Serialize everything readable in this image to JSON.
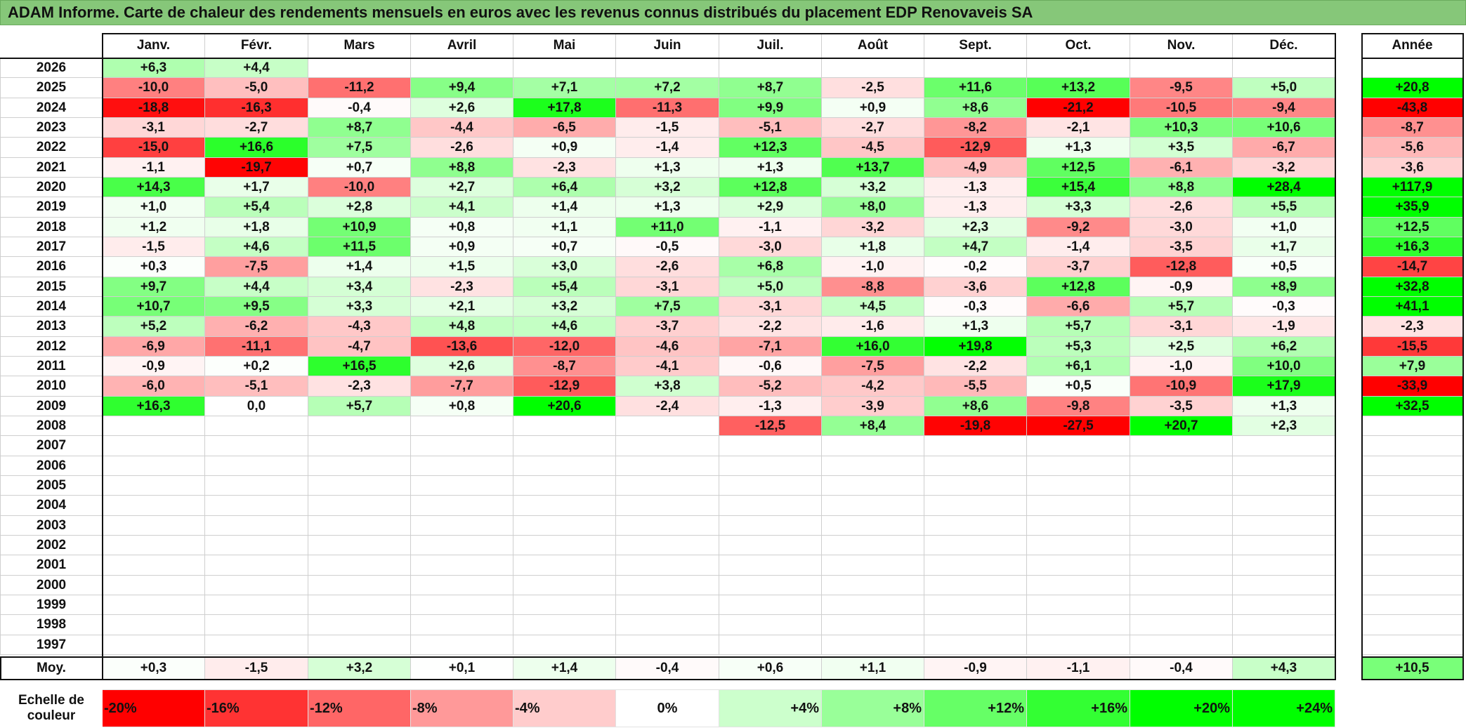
{
  "colors": {
    "title_bar": "#86c779"
  },
  "chart_data": {
    "type": "heatmap",
    "title": "ADAM Informe. Carte de chaleur des rendements mensuels en euros avec les revenus connus distribués du placement EDP Renovaveis SA",
    "x_categories": [
      "Janv.",
      "Févr.",
      "Mars",
      "Avril",
      "Mai",
      "Juin",
      "Juil.",
      "Août",
      "Sept.",
      "Oct.",
      "Nov.",
      "Déc."
    ],
    "y_categories": [
      "2026",
      "2025",
      "2024",
      "2023",
      "2022",
      "2021",
      "2020",
      "2019",
      "2018",
      "2017",
      "2016",
      "2015",
      "2014",
      "2013",
      "2012",
      "2011",
      "2010",
      "2009",
      "2008",
      "2007",
      "2006",
      "2005",
      "2004",
      "2003",
      "2002",
      "2001",
      "2000",
      "1999",
      "1998",
      "1997"
    ],
    "values": [
      [
        6.3,
        4.4,
        null,
        null,
        null,
        null,
        null,
        null,
        null,
        null,
        null,
        null
      ],
      [
        -10.0,
        -5.0,
        -11.2,
        9.4,
        7.1,
        7.2,
        8.7,
        -2.5,
        11.6,
        13.2,
        -9.5,
        5.0
      ],
      [
        -18.8,
        -16.3,
        -0.4,
        2.6,
        17.8,
        -11.3,
        9.9,
        0.9,
        8.6,
        -21.2,
        -10.5,
        -9.4
      ],
      [
        -3.1,
        -2.7,
        8.7,
        -4.4,
        -6.5,
        -1.5,
        -5.1,
        -2.7,
        -8.2,
        -2.1,
        10.3,
        10.6
      ],
      [
        -15.0,
        16.6,
        7.5,
        -2.6,
        0.9,
        -1.4,
        12.3,
        -4.5,
        -12.9,
        1.3,
        3.5,
        -6.7
      ],
      [
        -1.1,
        -19.7,
        0.7,
        8.8,
        -2.3,
        1.3,
        1.3,
        13.7,
        -4.9,
        12.5,
        -6.1,
        -3.2
      ],
      [
        14.3,
        1.7,
        -10.0,
        2.7,
        6.4,
        3.2,
        12.8,
        3.2,
        -1.3,
        15.4,
        8.8,
        28.4
      ],
      [
        1.0,
        5.4,
        2.8,
        4.1,
        1.4,
        1.3,
        2.9,
        8.0,
        -1.3,
        3.3,
        -2.6,
        5.5
      ],
      [
        1.2,
        1.8,
        10.9,
        0.8,
        1.1,
        11.0,
        -1.1,
        -3.2,
        2.3,
        -9.2,
        -3.0,
        1.0
      ],
      [
        -1.5,
        4.6,
        11.5,
        0.9,
        0.7,
        -0.5,
        -3.0,
        1.8,
        4.7,
        -1.4,
        -3.5,
        1.7
      ],
      [
        0.3,
        -7.5,
        1.4,
        1.5,
        3.0,
        -2.6,
        6.8,
        -1.0,
        -0.2,
        -3.7,
        -12.8,
        0.5
      ],
      [
        9.7,
        4.4,
        3.4,
        -2.3,
        5.4,
        -3.1,
        5.0,
        -8.8,
        -3.6,
        12.8,
        -0.9,
        8.9
      ],
      [
        10.7,
        9.5,
        3.3,
        2.1,
        3.2,
        7.5,
        -3.1,
        4.5,
        -0.3,
        -6.6,
        5.7,
        -0.3
      ],
      [
        5.2,
        -6.2,
        -4.3,
        4.8,
        4.6,
        -3.7,
        -2.2,
        -1.6,
        1.3,
        5.7,
        -3.1,
        -1.9
      ],
      [
        -6.9,
        -11.1,
        -4.7,
        -13.6,
        -12.0,
        -4.6,
        -7.1,
        16.0,
        19.8,
        5.3,
        2.5,
        6.2
      ],
      [
        -0.9,
        0.2,
        16.5,
        2.6,
        -8.7,
        -4.1,
        -0.6,
        -7.5,
        -2.2,
        6.1,
        -1.0,
        10.0
      ],
      [
        -6.0,
        -5.1,
        -2.3,
        -7.7,
        -12.9,
        3.8,
        -5.2,
        -4.2,
        -5.5,
        0.5,
        -10.9,
        17.9
      ],
      [
        16.3,
        0.0,
        5.7,
        0.8,
        20.6,
        -2.4,
        -1.3,
        -3.9,
        8.6,
        -9.8,
        -3.5,
        1.3
      ],
      [
        null,
        null,
        null,
        null,
        null,
        null,
        -12.5,
        8.4,
        -19.8,
        -27.5,
        20.7,
        2.3
      ],
      [
        null,
        null,
        null,
        null,
        null,
        null,
        null,
        null,
        null,
        null,
        null,
        null
      ],
      [
        null,
        null,
        null,
        null,
        null,
        null,
        null,
        null,
        null,
        null,
        null,
        null
      ],
      [
        null,
        null,
        null,
        null,
        null,
        null,
        null,
        null,
        null,
        null,
        null,
        null
      ],
      [
        null,
        null,
        null,
        null,
        null,
        null,
        null,
        null,
        null,
        null,
        null,
        null
      ],
      [
        null,
        null,
        null,
        null,
        null,
        null,
        null,
        null,
        null,
        null,
        null,
        null
      ],
      [
        null,
        null,
        null,
        null,
        null,
        null,
        null,
        null,
        null,
        null,
        null,
        null
      ],
      [
        null,
        null,
        null,
        null,
        null,
        null,
        null,
        null,
        null,
        null,
        null,
        null
      ],
      [
        null,
        null,
        null,
        null,
        null,
        null,
        null,
        null,
        null,
        null,
        null,
        null
      ],
      [
        null,
        null,
        null,
        null,
        null,
        null,
        null,
        null,
        null,
        null,
        null,
        null
      ],
      [
        null,
        null,
        null,
        null,
        null,
        null,
        null,
        null,
        null,
        null,
        null,
        null
      ],
      [
        null,
        null,
        null,
        null,
        null,
        null,
        null,
        null,
        null,
        null,
        null,
        null
      ]
    ],
    "annual": {
      "label": "Année",
      "values": [
        null,
        20.8,
        -43.8,
        -8.7,
        -5.6,
        -3.6,
        117.9,
        35.9,
        12.5,
        16.3,
        -14.7,
        32.8,
        41.1,
        -2.3,
        -15.5,
        7.9,
        -33.9,
        32.5,
        null,
        null,
        null,
        null,
        null,
        null,
        null,
        null,
        null,
        null,
        null,
        null
      ]
    },
    "average": {
      "label": "Moy.",
      "values": [
        0.3,
        -1.5,
        3.2,
        0.1,
        1.4,
        -0.4,
        0.6,
        1.1,
        -0.9,
        -1.1,
        -0.4,
        4.3
      ],
      "annual": 10.5
    },
    "legend": {
      "label": "Echelle de couleur",
      "stops": [
        {
          "label": "-20%",
          "value": -20,
          "color": "#ff0000"
        },
        {
          "label": "-16%",
          "value": -16,
          "color": "#ff3333"
        },
        {
          "label": "-12%",
          "value": -12,
          "color": "#ff6666"
        },
        {
          "label": "-8%",
          "value": -8,
          "color": "#ff9999"
        },
        {
          "label": "-4%",
          "value": -4,
          "color": "#ffcccc"
        },
        {
          "label": "0%",
          "value": 0,
          "color": "#ffffff"
        },
        {
          "label": "+4%",
          "value": 4,
          "color": "#ccffcc"
        },
        {
          "label": "+8%",
          "value": 8,
          "color": "#99ff99"
        },
        {
          "label": "+12%",
          "value": 12,
          "color": "#66ff66"
        },
        {
          "label": "+16%",
          "value": 16,
          "color": "#33ff33"
        },
        {
          "label": "+20%",
          "value": 20,
          "color": "#00ff00"
        },
        {
          "label": "+24%",
          "value": 24,
          "color": "#00ff00"
        }
      ]
    }
  }
}
